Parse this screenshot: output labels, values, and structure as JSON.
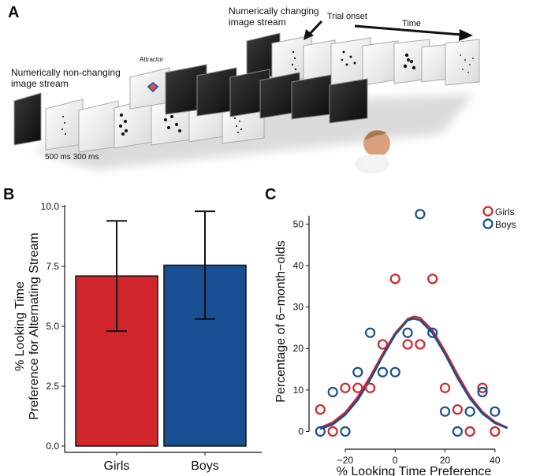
{
  "panel_a": {
    "letter": "A",
    "label_changing": [
      "Numerically changing",
      "image stream"
    ],
    "label_nonchanging": [
      "Numerically non-changing",
      "image stream"
    ],
    "label_attractor": "Attractor",
    "label_trial_onset": "Trial onset",
    "label_time": "Time",
    "label_durations": "500 ms  300 ms"
  },
  "panel_b": {
    "letter": "B"
  },
  "panel_c": {
    "letter": "C"
  },
  "chart_data": [
    {
      "type": "bar",
      "categories": [
        "Girls",
        "Boys"
      ],
      "values": [
        7.1,
        7.55
      ],
      "error_low": [
        4.8,
        5.3
      ],
      "error_high": [
        9.4,
        9.8
      ],
      "colors": [
        "#d0262b",
        "#174f92"
      ],
      "ylabel": [
        "% Looking Time",
        "Preference for Alternating Stream"
      ],
      "xlabel": "",
      "ylim": [
        0,
        10
      ],
      "yticks": [
        "0.0",
        "2.5",
        "5.0",
        "7.5",
        "10.0"
      ]
    },
    {
      "type": "scatter",
      "xlabel": "% Looking Time Preference",
      "ylabel": "Percentage of 6−month−olds",
      "xlim": [
        -32,
        47
      ],
      "ylim": [
        -2,
        55
      ],
      "xticks": [
        "−20",
        "0",
        "20",
        "40"
      ],
      "xtick_values": [
        -20,
        0,
        20,
        40
      ],
      "yticks": [
        "0",
        "10",
        "20",
        "30",
        "40",
        "50"
      ],
      "ytick_values": [
        0,
        10,
        20,
        30,
        40,
        50
      ],
      "legend_position": "top-right",
      "series": [
        {
          "name": "Girls",
          "color": "#d0262b",
          "points": [
            [
              -30,
              5.3
            ],
            [
              -25,
              0
            ],
            [
              -20,
              10.5
            ],
            [
              -15,
              10.5
            ],
            [
              -10,
              10.5
            ],
            [
              -5,
              21
            ],
            [
              0,
              36.8
            ],
            [
              5,
              21
            ],
            [
              10,
              21
            ],
            [
              15,
              36.8
            ],
            [
              20,
              10.5
            ],
            [
              25,
              5.3
            ],
            [
              30,
              0
            ],
            [
              35,
              10.5
            ],
            [
              40,
              0
            ]
          ],
          "curve": [
            [
              -30,
              0.9
            ],
            [
              -25,
              2.2
            ],
            [
              -20,
              4.6
            ],
            [
              -15,
              8.3
            ],
            [
              -10,
              13.2
            ],
            [
              -5,
              18.7
            ],
            [
              0,
              23.7
            ],
            [
              5,
              27.1
            ],
            [
              7.5,
              27.7
            ],
            [
              10,
              27.4
            ],
            [
              15,
              24.4
            ],
            [
              20,
              19.3
            ],
            [
              25,
              13.7
            ],
            [
              30,
              8.5
            ],
            [
              35,
              4.7
            ],
            [
              40,
              2.3
            ],
            [
              45,
              0.9
            ]
          ]
        },
        {
          "name": "Boys",
          "color": "#174f92",
          "points": [
            [
              -30,
              0
            ],
            [
              -25,
              9.5
            ],
            [
              -20,
              0
            ],
            [
              -15,
              14.3
            ],
            [
              -10,
              23.8
            ],
            [
              -5,
              14.3
            ],
            [
              0,
              14.3
            ],
            [
              5,
              23.8
            ],
            [
              10,
              52.4
            ],
            [
              15,
              23.8
            ],
            [
              20,
              4.8
            ],
            [
              25,
              0
            ],
            [
              30,
              4.8
            ],
            [
              35,
              9.5
            ],
            [
              40,
              4.8
            ]
          ],
          "curve": [
            [
              -30,
              0.6
            ],
            [
              -25,
              1.7
            ],
            [
              -20,
              4.0
            ],
            [
              -15,
              7.6
            ],
            [
              -10,
              12.5
            ],
            [
              -5,
              18.1
            ],
            [
              0,
              23.3
            ],
            [
              5,
              26.8
            ],
            [
              7.5,
              27.2
            ],
            [
              10,
              26.8
            ],
            [
              15,
              23.7
            ],
            [
              20,
              18.6
            ],
            [
              25,
              12.9
            ],
            [
              30,
              7.9
            ],
            [
              35,
              4.3
            ],
            [
              40,
              2.0
            ],
            [
              45,
              0.8
            ]
          ]
        }
      ]
    }
  ]
}
